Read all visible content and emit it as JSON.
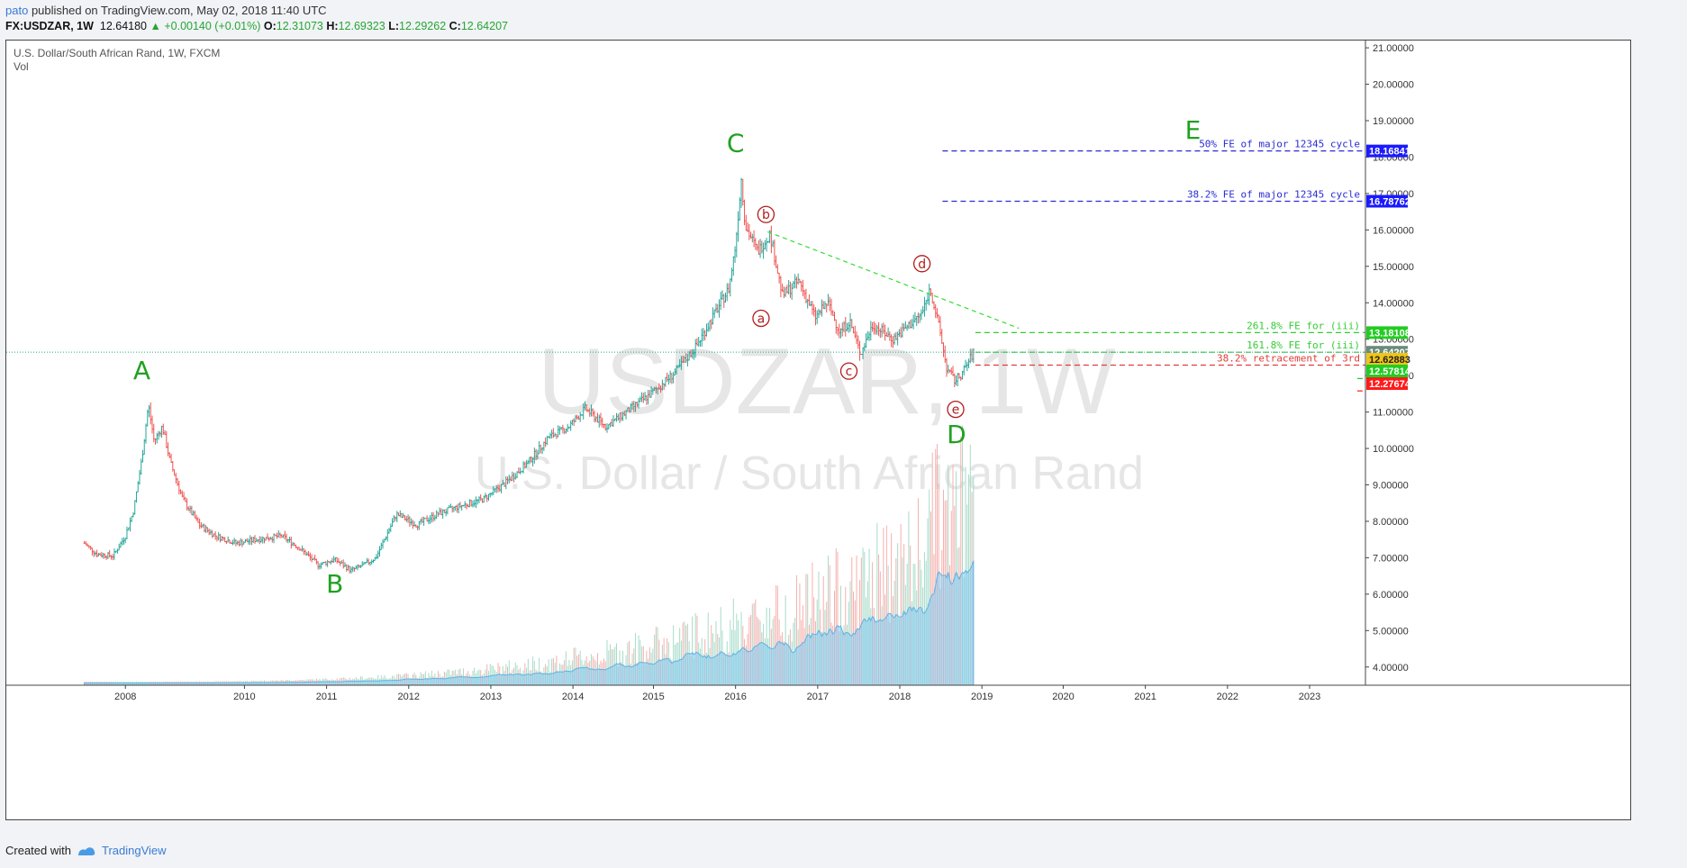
{
  "header": {
    "user": "pato",
    "published": "published on TradingView.com, May 02, 2018 11:40 UTC",
    "symbol": "FX:USDZAR, 1W",
    "last": "12.64180",
    "change": "▲ +0.00140 (+0.01%)",
    "o_label": "O:",
    "o_val": "12.31073",
    "h_label": "H:",
    "h_val": "12.69323",
    "l_label": "L:",
    "l_val": "12.29262",
    "c_label": "C:",
    "c_val": "12.64207"
  },
  "legend": {
    "title": "U.S. Dollar/South African Rand, 1W, FXCM",
    "vol": "Vol"
  },
  "watermark": {
    "line1": "USDZAR, 1W",
    "line2": "U.S. Dollar / South African Rand"
  },
  "footer": {
    "created": "Created with",
    "brand": "TradingView"
  },
  "colors": {
    "up": "#26a69a",
    "down": "#ef5350",
    "wave_big": "#21a121",
    "wave_small": "#b21c1c",
    "fib_blue": "#2b2bd6",
    "fib_green": "#33cc33",
    "fib_red": "#e23b3b",
    "volume": "#7fc8ee"
  },
  "chart_data": {
    "type": "candlestick",
    "ylim": [
      3.5,
      21.2
    ],
    "y_ticks": [
      "21.00000",
      "20.00000",
      "19.00000",
      "18.00000",
      "17.00000",
      "16.00000",
      "15.00000",
      "14.00000",
      "13.00000",
      "12.00000",
      "11.00000",
      "10.00000",
      "9.00000",
      "8.00000",
      "7.00000",
      "6.00000",
      "5.00000",
      "4.00000"
    ],
    "y_tick_values": [
      21,
      20,
      19,
      18,
      17,
      16,
      15,
      14,
      13,
      12,
      11,
      10,
      9,
      8,
      7,
      6,
      5,
      4
    ],
    "x_ticks": [
      "2008",
      "2010",
      "2011",
      "2012",
      "2013",
      "2014",
      "2015",
      "2016",
      "2017",
      "2018",
      "2019",
      "2020",
      "2021",
      "2022",
      "2023"
    ],
    "x_tick_years": [
      2008.0,
      2009.45,
      2010.45,
      2011.45,
      2012.45,
      2013.45,
      2014.43,
      2015.43,
      2016.43,
      2017.43,
      2018.43,
      2019.42,
      2020.42,
      2021.42,
      2022.42
    ],
    "xlim": [
      2006.55,
      2023.1
    ],
    "price_path": [
      [
        2007.5,
        7.4
      ],
      [
        2007.65,
        7.1
      ],
      [
        2007.85,
        7.05
      ],
      [
        2008.0,
        7.6
      ],
      [
        2008.1,
        8.3
      ],
      [
        2008.2,
        9.7
      ],
      [
        2008.28,
        11.2
      ],
      [
        2008.35,
        10.2
      ],
      [
        2008.45,
        10.6
      ],
      [
        2008.55,
        9.6
      ],
      [
        2008.7,
        8.6
      ],
      [
        2008.9,
        7.9
      ],
      [
        2009.1,
        7.6
      ],
      [
        2009.35,
        7.4
      ],
      [
        2009.6,
        7.5
      ],
      [
        2009.9,
        7.6
      ],
      [
        2010.1,
        7.3
      ],
      [
        2010.35,
        6.8
      ],
      [
        2010.55,
        6.95
      ],
      [
        2010.75,
        6.65
      ],
      [
        2010.9,
        6.8
      ],
      [
        2011.05,
        7.0
      ],
      [
        2011.3,
        8.2
      ],
      [
        2011.55,
        7.9
      ],
      [
        2011.8,
        8.2
      ],
      [
        2012.05,
        8.4
      ],
      [
        2012.35,
        8.6
      ],
      [
        2012.6,
        9.0
      ],
      [
        2012.9,
        9.6
      ],
      [
        2013.15,
        10.3
      ],
      [
        2013.4,
        10.6
      ],
      [
        2013.6,
        11.1
      ],
      [
        2013.85,
        10.6
      ],
      [
        2014.1,
        11.0
      ],
      [
        2014.4,
        11.5
      ],
      [
        2014.7,
        12.1
      ],
      [
        2014.95,
        12.8
      ],
      [
        2015.15,
        13.6
      ],
      [
        2015.35,
        14.4
      ],
      [
        2015.43,
        15.6
      ],
      [
        2015.5,
        17.4
      ],
      [
        2015.55,
        16.1
      ],
      [
        2015.7,
        15.4
      ],
      [
        2015.85,
        15.9
      ],
      [
        2016.0,
        14.2
      ],
      [
        2016.2,
        14.6
      ],
      [
        2016.4,
        13.6
      ],
      [
        2016.55,
        14.0
      ],
      [
        2016.7,
        13.2
      ],
      [
        2016.82,
        13.5
      ],
      [
        2016.95,
        12.6
      ],
      [
        2017.1,
        13.4
      ],
      [
        2017.35,
        13.0
      ],
      [
        2017.55,
        13.4
      ],
      [
        2017.7,
        13.7
      ],
      [
        2017.8,
        14.4
      ],
      [
        2017.92,
        13.2
      ],
      [
        2018.0,
        12.2
      ],
      [
        2018.1,
        11.85
      ],
      [
        2018.2,
        12.1
      ],
      [
        2018.33,
        12.64
      ]
    ],
    "annotations": {
      "big": [
        {
          "text": "A",
          "x": 2008.2,
          "y": 11.9
        },
        {
          "text": "B",
          "x": 2010.55,
          "y": 6.05
        },
        {
          "text": "C",
          "x": 2015.43,
          "y": 18.15
        },
        {
          "text": "D",
          "x": 2018.12,
          "y": 10.15
        },
        {
          "text": "E",
          "x": 2021.0,
          "y": 18.5
        }
      ],
      "small": [
        {
          "text": "a",
          "x": 2015.74,
          "y": 13.45
        },
        {
          "text": "b",
          "x": 2015.8,
          "y": 16.3
        },
        {
          "text": "c",
          "x": 2016.81,
          "y": 12.0
        },
        {
          "text": "d",
          "x": 2017.7,
          "y": 14.95
        },
        {
          "text": "e",
          "x": 2018.11,
          "y": 10.95
        }
      ]
    },
    "trendline": [
      [
        2015.82,
        15.95
      ],
      [
        2018.88,
        13.3
      ]
    ],
    "levels": [
      {
        "value": 18.16841,
        "label": "50% FE of major 12345 cycle",
        "x0": 2017.95,
        "tag": "18.16841",
        "color": "#2b2bd6",
        "tag_bg": "#1a1aff"
      },
      {
        "value": 16.78762,
        "label": "38.2% FE of major 12345 cycle",
        "x0": 2017.95,
        "tag": "16.78762",
        "color": "#2b2bd6",
        "tag_bg": "#1a1aff"
      },
      {
        "value": 13.18108,
        "label": "261.8% FE for (iii)",
        "x0": 2018.35,
        "tag": "13.18108",
        "color": "#33cc33",
        "tag_bg": "#22cc22"
      },
      {
        "value": 12.64207,
        "label": "161.8% FE for (iii)",
        "x0": 2018.35,
        "tag": "12.64207",
        "color": "#33cc33",
        "tag_bg": "#6a8c7a"
      },
      {
        "value": 12.28883,
        "label": "38.2% retracement of 3rd",
        "x0": 2018.35,
        "tag": "12.62883",
        "color": "#e23b3b",
        "tag_bg": "#f0c418"
      },
      {
        "value": 11.92,
        "label": "",
        "x0": 2023.0,
        "tag": "12.57814",
        "color": "#22cc22",
        "tag_bg": "#22cc22"
      },
      {
        "value": 11.58,
        "label": "",
        "x0": 2023.0,
        "tag": "12.27674",
        "color": "#ff1a1a",
        "tag_bg": "#ff1a1a"
      }
    ],
    "current_price": 12.64207
  }
}
